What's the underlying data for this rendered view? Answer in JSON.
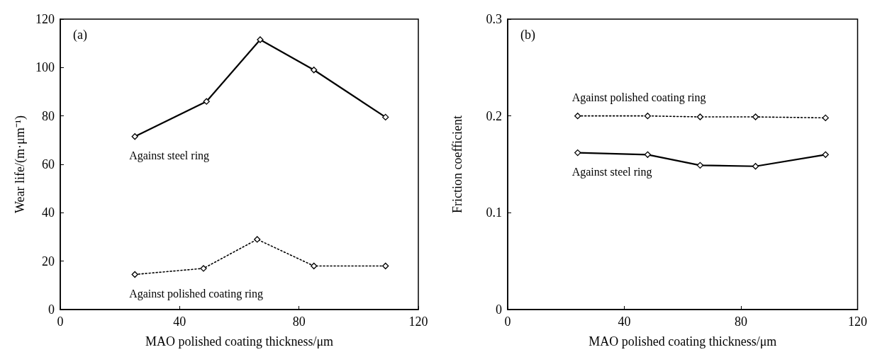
{
  "chart_data": [
    {
      "type": "line",
      "annotations": [
        "(a)"
      ],
      "xlabel": "MAO polished coating thickness/μm",
      "ylabel": "Wear life/(m·μm⁻¹)",
      "xlim": [
        0,
        120
      ],
      "xticks": [
        0,
        40,
        80,
        120
      ],
      "ylim": [
        0,
        120
      ],
      "yticks": [
        0,
        20,
        40,
        60,
        80,
        100,
        120
      ],
      "grid": false,
      "legend": false,
      "marker": "diamond",
      "series": [
        {
          "name": "Against steel ring",
          "color": "#000000",
          "line_style": "solid",
          "x": [
            25,
            49,
            67,
            85,
            109
          ],
          "values": [
            71.5,
            86,
            111.5,
            99,
            79.5
          ]
        },
        {
          "name": "Against polished coating ring",
          "color": "#000000",
          "line_style": "dotted",
          "x": [
            25,
            48,
            66,
            85,
            109
          ],
          "values": [
            14.5,
            17,
            29,
            18,
            18
          ]
        }
      ]
    },
    {
      "type": "line",
      "annotations": [
        "(b)"
      ],
      "xlabel": "MAO polished coating thickness/μm",
      "ylabel": "Friction coefficient",
      "xlim": [
        0,
        120
      ],
      "xticks": [
        0,
        40,
        80,
        120
      ],
      "ylim": [
        0,
        0.3
      ],
      "yticks": [
        0,
        0.1,
        0.2,
        0.3
      ],
      "grid": false,
      "legend": false,
      "marker": "diamond",
      "series": [
        {
          "name": "Against polished coating ring",
          "color": "#000000",
          "line_style": "dotted",
          "x": [
            24,
            48,
            66,
            85,
            109
          ],
          "values": [
            0.2,
            0.2,
            0.199,
            0.199,
            0.198
          ]
        },
        {
          "name": "Against steel ring",
          "color": "#000000",
          "line_style": "solid",
          "x": [
            24,
            48,
            66,
            85,
            109
          ],
          "values": [
            0.162,
            0.16,
            0.149,
            0.148,
            0.16
          ]
        }
      ]
    }
  ]
}
